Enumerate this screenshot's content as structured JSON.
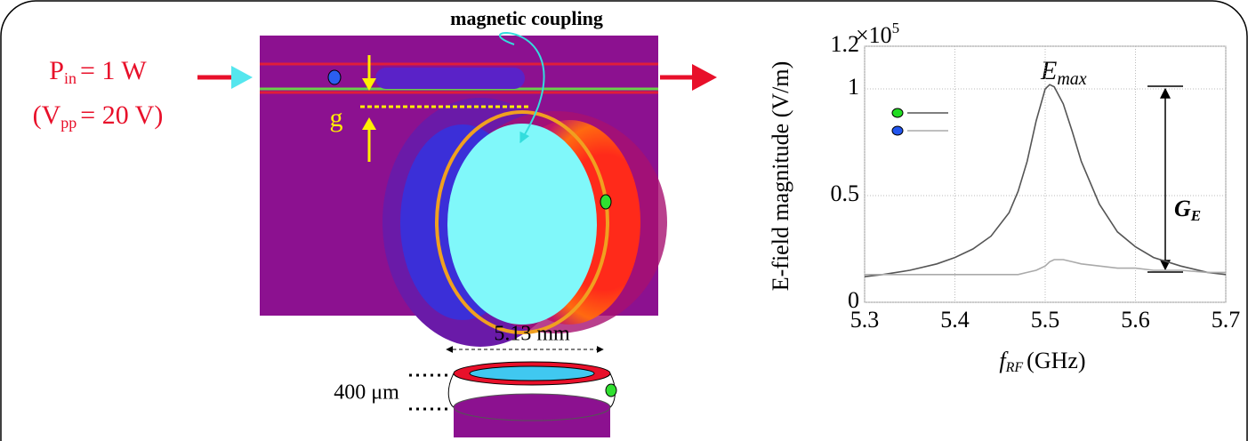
{
  "figure": {
    "input": {
      "p_symbol": "P",
      "p_sub": "in",
      "p_value": "= 1 W",
      "v_open": "(V",
      "v_sub": "pp",
      "v_value": "= 20 V)"
    },
    "coupling_label": "magnetic coupling",
    "gap_label": "g",
    "diameter_label": "5.13 mm",
    "thickness_label": "400 μm"
  },
  "chart_data": {
    "type": "line",
    "y_label": "E-field magnitude (V/m)",
    "y_scale": {
      "base": "×10",
      "exponent": "5"
    },
    "x_label": {
      "symbol": "f",
      "subscript": "RF",
      "unit": "(GHz)"
    },
    "peak_label": {
      "symbol": "E",
      "subscript": "max"
    },
    "gain_label": {
      "symbol": "G",
      "subscript": "E"
    },
    "x": [
      5.3,
      5.32,
      5.35,
      5.38,
      5.4,
      5.42,
      5.44,
      5.46,
      5.47,
      5.48,
      5.49,
      5.5,
      5.505,
      5.51,
      5.52,
      5.53,
      5.54,
      5.56,
      5.58,
      5.6,
      5.62,
      5.65,
      5.68,
      5.7
    ],
    "series": [
      {
        "color": "#555555",
        "marker_color": "#22dd22",
        "values": [
          0.12,
          0.13,
          0.15,
          0.18,
          0.21,
          0.25,
          0.31,
          0.42,
          0.52,
          0.66,
          0.85,
          1.0,
          1.02,
          1.01,
          0.93,
          0.8,
          0.66,
          0.46,
          0.33,
          0.26,
          0.21,
          0.17,
          0.14,
          0.13
        ]
      },
      {
        "color": "#aaaaaa",
        "marker_color": "#2255ee",
        "values": [
          0.13,
          0.13,
          0.13,
          0.13,
          0.13,
          0.13,
          0.13,
          0.13,
          0.13,
          0.14,
          0.15,
          0.17,
          0.19,
          0.2,
          0.2,
          0.19,
          0.18,
          0.17,
          0.16,
          0.16,
          0.15,
          0.15,
          0.14,
          0.14
        ]
      }
    ],
    "xlim": [
      5.3,
      5.7
    ],
    "ylim": [
      0,
      1.2
    ],
    "xticks": [
      5.3,
      5.4,
      5.5,
      5.6,
      5.7
    ],
    "yticks": [
      0,
      0.5,
      1,
      1.2
    ],
    "grid": true
  }
}
